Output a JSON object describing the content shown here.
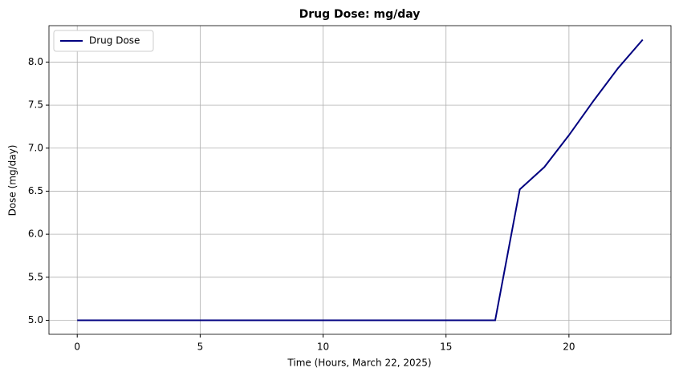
{
  "chart_data": {
    "type": "line",
    "title": "Drug Dose: mg/day",
    "x_label": "Time (Hours, March 22, 2025)",
    "y_label": "Dose (mg/day)",
    "x": [
      0,
      1,
      2,
      3,
      4,
      5,
      6,
      7,
      8,
      9,
      10,
      11,
      12,
      13,
      14,
      15,
      16,
      17,
      18,
      19,
      20,
      21,
      22,
      23
    ],
    "series": [
      {
        "name": "Drug Dose",
        "color": "#000080",
        "values": [
          5.0,
          5.0,
          5.0,
          5.0,
          5.0,
          5.0,
          5.0,
          5.0,
          5.0,
          5.0,
          5.0,
          5.0,
          5.0,
          5.0,
          5.0,
          5.0,
          5.0,
          5.0,
          6.52,
          6.78,
          7.15,
          7.55,
          7.93,
          8.26
        ]
      }
    ],
    "xlim": [
      -1.15,
      24.15
    ],
    "xticks": [
      0,
      5,
      10,
      15,
      20
    ],
    "ylim": [
      4.837,
      8.423
    ],
    "yticks": [
      {
        "value": 5.0,
        "label": "5.0"
      },
      5.5,
      {
        "value": 6.0,
        "label": "6.0"
      },
      6.5,
      {
        "value": 7.0,
        "label": "7.0"
      },
      7.5,
      {
        "value": 8.0,
        "label": "8.0"
      }
    ],
    "grid": true,
    "legend": "upper-left"
  }
}
